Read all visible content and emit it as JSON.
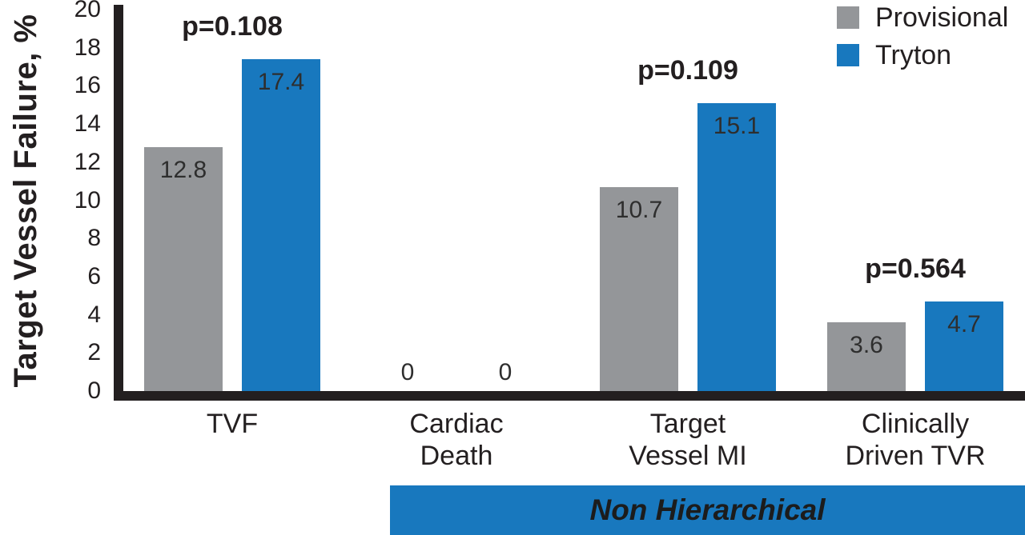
{
  "chart_data": {
    "type": "bar",
    "title": "",
    "ylabel": "Target Vessel Failure, %",
    "xlabel": "",
    "ylim": [
      0,
      20
    ],
    "yticks": [
      0,
      2,
      4,
      6,
      8,
      10,
      12,
      14,
      16,
      18,
      20
    ],
    "grid": false,
    "legend_position": "top-right",
    "categories": [
      "TVF",
      "Cardiac Death",
      "Target Vessel MI",
      "Clinically Driven TVR"
    ],
    "categories_lines": [
      [
        "TVF"
      ],
      [
        "Cardiac",
        "Death"
      ],
      [
        "Target",
        "Vessel MI"
      ],
      [
        "Clinically",
        "Driven TVR"
      ]
    ],
    "series": [
      {
        "name": "Provisional",
        "color": "#949699",
        "values": [
          12.8,
          0,
          10.7,
          3.6
        ],
        "value_labels": [
          "12.8",
          "0",
          "10.7",
          "3.6"
        ]
      },
      {
        "name": "Tryton",
        "color": "#1878be",
        "values": [
          17.4,
          0,
          15.1,
          4.7
        ],
        "value_labels": [
          "17.4",
          "0",
          "15.1",
          "4.7"
        ]
      }
    ],
    "p_values": [
      "p=0.108",
      "",
      "p=0.109",
      "p=0.564"
    ],
    "footer_banner": "Non Hierarchical",
    "colors": {
      "provisional": "#949699",
      "tryton": "#1878be",
      "axis": "#231f20",
      "value_text": "#2e2e2e",
      "banner_bg": "#1878be",
      "banner_text": "#1c1c1c"
    }
  },
  "legend": {
    "items": [
      {
        "label": "Provisional",
        "color": "#949699"
      },
      {
        "label": "Tryton",
        "color": "#1878be"
      }
    ]
  }
}
